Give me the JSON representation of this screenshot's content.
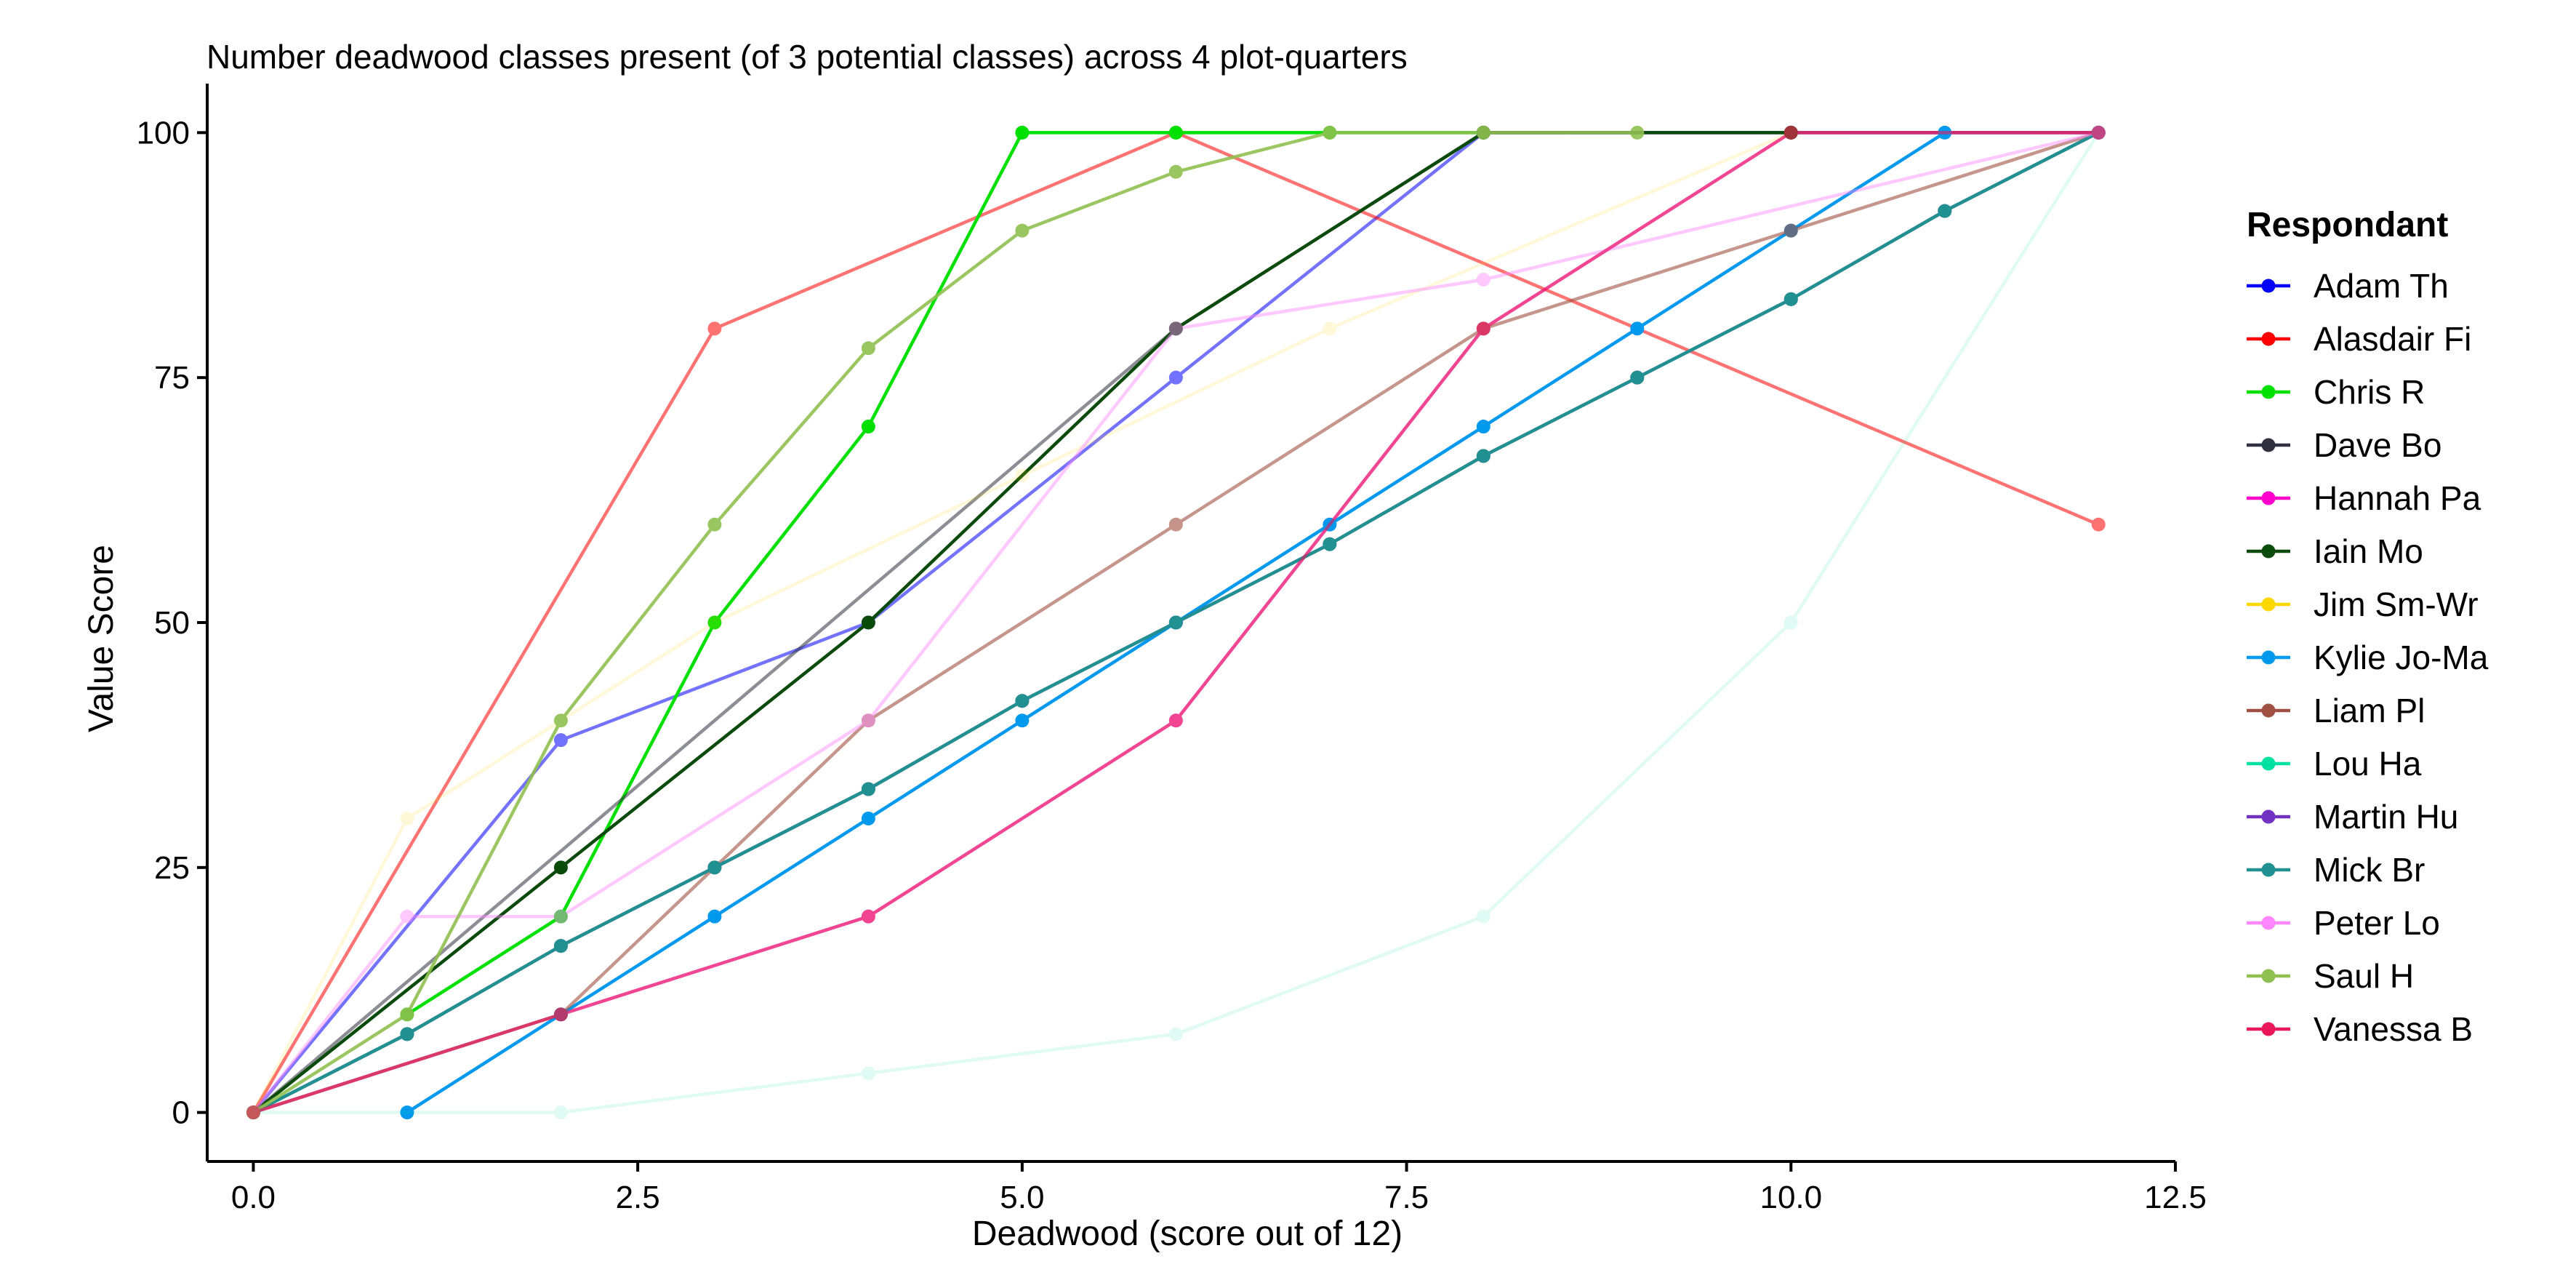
{
  "chart_data": {
    "type": "line",
    "title": "Number deadwood classes present (of 3 potential classes)  across 4 plot-quarters",
    "xlabel": "Deadwood (score out of 12)",
    "ylabel": "Value Score",
    "xlim": [
      -0.3,
      12.5
    ],
    "ylim": [
      -5,
      105
    ],
    "x_ticks": [
      "0.0",
      "2.5",
      "5.0",
      "7.5",
      "10.0",
      "12.5"
    ],
    "x_tick_values": [
      0,
      2.5,
      5,
      7.5,
      10,
      12.5
    ],
    "y_ticks": [
      "0",
      "25",
      "50",
      "75",
      "100"
    ],
    "y_tick_values": [
      0,
      25,
      50,
      75,
      100
    ],
    "grid": false,
    "legend_title": "Respondant",
    "legend_position": "right",
    "series": [
      {
        "name": "Adam Th",
        "color": "#0000ff",
        "opacity": 0.55,
        "points": [
          [
            0,
            0
          ],
          [
            2,
            38
          ],
          [
            4,
            50
          ],
          [
            6,
            75
          ],
          [
            8,
            100
          ],
          [
            10,
            100
          ],
          [
            12,
            100
          ]
        ]
      },
      {
        "name": "Alasdair Fi",
        "color": "#ff0000",
        "opacity": 0.55,
        "points": [
          [
            0,
            0
          ],
          [
            3,
            80
          ],
          [
            6,
            100
          ],
          [
            12,
            60
          ]
        ]
      },
      {
        "name": "Chris R",
        "color": "#00e000",
        "opacity": 1.0,
        "points": [
          [
            1,
            10
          ],
          [
            2,
            20
          ],
          [
            3,
            50
          ],
          [
            4,
            70
          ],
          [
            5,
            100
          ],
          [
            6,
            100
          ],
          [
            7,
            100
          ],
          [
            8,
            100
          ]
        ]
      },
      {
        "name": "Dave Bo",
        "color": "#303040",
        "opacity": 0.55,
        "points": [
          [
            0,
            0
          ],
          [
            6,
            80
          ],
          [
            8,
            100
          ],
          [
            10,
            100
          ],
          [
            12,
            100
          ]
        ]
      },
      {
        "name": "Hannah Pa",
        "color": "#ff00cc",
        "opacity": 0.45,
        "points": [
          [
            0,
            0
          ],
          [
            2,
            10
          ],
          [
            4,
            20
          ],
          [
            6,
            40
          ],
          [
            8,
            80
          ],
          [
            10,
            100
          ],
          [
            12,
            100
          ]
        ]
      },
      {
        "name": "Iain Mo",
        "color": "#0a4a0a",
        "opacity": 1.0,
        "points": [
          [
            0,
            0
          ],
          [
            2,
            25
          ],
          [
            4,
            50
          ],
          [
            6,
            80
          ],
          [
            8,
            100
          ],
          [
            10,
            100
          ]
        ]
      },
      {
        "name": "Jim Sm-Wr",
        "color": "#ffd700",
        "opacity": 0.15,
        "points": [
          [
            0,
            0
          ],
          [
            1,
            30
          ],
          [
            3,
            50
          ],
          [
            5,
            65
          ],
          [
            7,
            80
          ],
          [
            10,
            100
          ],
          [
            12,
            100
          ]
        ]
      },
      {
        "name": "Kylie Jo-Ma",
        "color": "#0099ee",
        "opacity": 1.0,
        "points": [
          [
            1,
            0
          ],
          [
            2,
            10
          ],
          [
            3,
            20
          ],
          [
            4,
            30
          ],
          [
            5,
            40
          ],
          [
            6,
            50
          ],
          [
            7,
            60
          ],
          [
            8,
            70
          ],
          [
            9,
            80
          ],
          [
            10,
            90
          ],
          [
            11,
            100
          ]
        ]
      },
      {
        "name": "Liam Pl",
        "color": "#a05040",
        "opacity": 0.6,
        "points": [
          [
            0,
            0
          ],
          [
            2,
            10
          ],
          [
            4,
            40
          ],
          [
            6,
            60
          ],
          [
            8,
            80
          ],
          [
            10,
            90
          ],
          [
            12,
            100
          ]
        ]
      },
      {
        "name": "Lou Ha",
        "color": "#00e0a0",
        "opacity": 0.12,
        "points": [
          [
            0,
            0
          ],
          [
            2,
            0
          ],
          [
            4,
            4
          ],
          [
            6,
            8
          ],
          [
            8,
            20
          ],
          [
            10,
            50
          ],
          [
            12,
            100
          ]
        ]
      },
      {
        "name": "Martin Hu",
        "color": "#7030c0",
        "opacity": 1.0,
        "points": [
          [
            0,
            0
          ],
          [
            1,
            8
          ],
          [
            2,
            17
          ],
          [
            3,
            25
          ],
          [
            4,
            33
          ],
          [
            5,
            42
          ],
          [
            6,
            50
          ],
          [
            7,
            58
          ],
          [
            8,
            67
          ],
          [
            9,
            75
          ],
          [
            10,
            83
          ],
          [
            11,
            92
          ],
          [
            12,
            100
          ]
        ]
      },
      {
        "name": "Mick Br",
        "color": "#209090",
        "opacity": 1.0,
        "points": [
          [
            0,
            0
          ],
          [
            1,
            8
          ],
          [
            2,
            17
          ],
          [
            3,
            25
          ],
          [
            4,
            33
          ],
          [
            5,
            42
          ],
          [
            6,
            50
          ],
          [
            7,
            58
          ],
          [
            8,
            67
          ],
          [
            9,
            75
          ],
          [
            10,
            83
          ],
          [
            11,
            92
          ],
          [
            12,
            100
          ]
        ]
      },
      {
        "name": "Peter Lo",
        "color": "#ff88ff",
        "opacity": 0.45,
        "points": [
          [
            0,
            0
          ],
          [
            1,
            20
          ],
          [
            2,
            20
          ],
          [
            4,
            40
          ],
          [
            6,
            80
          ],
          [
            8,
            85
          ],
          [
            12,
            100
          ]
        ]
      },
      {
        "name": "Saul H",
        "color": "#90c050",
        "opacity": 0.9,
        "points": [
          [
            0,
            0
          ],
          [
            1,
            10
          ],
          [
            2,
            40
          ],
          [
            3,
            60
          ],
          [
            4,
            78
          ],
          [
            5,
            90
          ],
          [
            6,
            96
          ],
          [
            7,
            100
          ],
          [
            8,
            100
          ],
          [
            9,
            100
          ]
        ]
      },
      {
        "name": "Vanessa B",
        "color": "#e8185a",
        "opacity": 0.6,
        "points": [
          [
            0,
            0
          ],
          [
            2,
            10
          ],
          [
            4,
            20
          ],
          [
            6,
            40
          ],
          [
            8,
            80
          ],
          [
            10,
            100
          ],
          [
            12,
            100
          ]
        ]
      }
    ]
  }
}
